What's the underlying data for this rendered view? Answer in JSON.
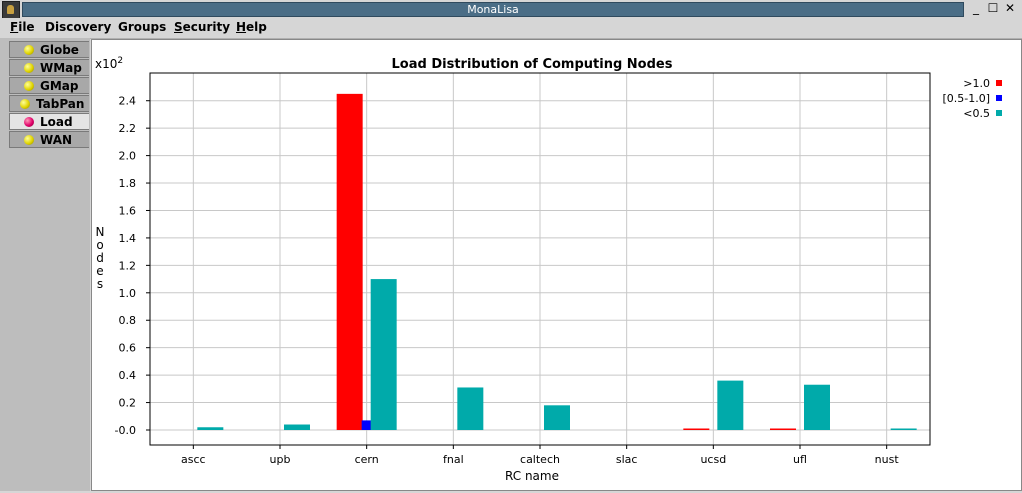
{
  "window": {
    "title": "MonaLisa",
    "controls": {
      "minimize": "_",
      "maximize": "☐",
      "close": "✕"
    }
  },
  "menu": {
    "items": [
      {
        "label": "File",
        "u": "F",
        "rest": "ile"
      },
      {
        "label": "Discovery",
        "u": "",
        "rest": "Discovery"
      },
      {
        "label": "Groups",
        "u": "",
        "rest": "Groups"
      },
      {
        "label": "Security",
        "u": "S",
        "rest": "ecurity"
      },
      {
        "label": "Help",
        "u": "H",
        "rest": "elp"
      }
    ]
  },
  "sidebar": {
    "tabs": [
      {
        "label": "Globe",
        "selected": false
      },
      {
        "label": "WMap",
        "selected": false
      },
      {
        "label": "GMap",
        "selected": false
      },
      {
        "label": "TabPan",
        "selected": false
      },
      {
        "label": "Load",
        "selected": true
      },
      {
        "label": "WAN",
        "selected": false
      }
    ]
  },
  "chart_data": {
    "type": "bar",
    "title": "Load Distribution of Computing Nodes",
    "xlabel": "RC name",
    "ylabel": "Nodes",
    "y_multiplier_label": "x10",
    "y_multiplier_exp": "2",
    "categories": [
      "ascc",
      "upb",
      "cern",
      "fnal",
      "caltech",
      "slac",
      "ucsd",
      "ufl",
      "nust"
    ],
    "series": [
      {
        "name": ">1.0",
        "color": "#ff0000",
        "values": [
          0,
          0,
          2.45,
          0,
          0,
          0,
          0.01,
          0.01,
          0
        ]
      },
      {
        "name": "[0.5-1.0]",
        "color": "#0000ff",
        "values": [
          0,
          0,
          0.07,
          0,
          0,
          0,
          0,
          0,
          0
        ]
      },
      {
        "name": "<0.5",
        "color": "#00aaaa",
        "values": [
          0.02,
          0.04,
          1.1,
          0.31,
          0.18,
          0,
          0.36,
          0.33,
          0.01
        ]
      }
    ],
    "yticks": [
      "-0.0",
      "0.2",
      "0.4",
      "0.6",
      "0.8",
      "1.0",
      "1.2",
      "1.4",
      "1.6",
      "1.8",
      "2.0",
      "2.2",
      "2.4"
    ],
    "ylim": [
      0,
      2.5
    ],
    "grid": true,
    "legend_position": "top-right"
  }
}
